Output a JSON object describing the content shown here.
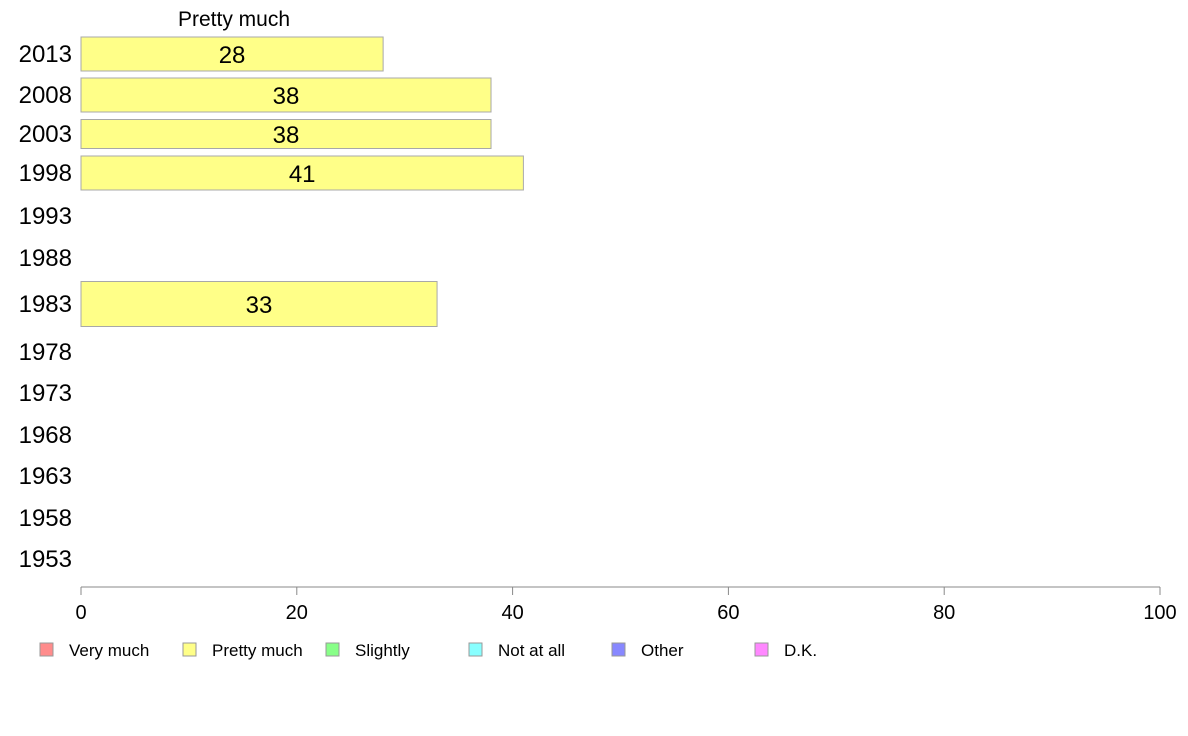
{
  "chart_data": {
    "type": "bar",
    "orientation": "horizontal",
    "panel_title": "Pretty much",
    "categories": [
      "2013",
      "2008",
      "2003",
      "1998",
      "1993",
      "1988",
      "1983",
      "1978",
      "1973",
      "1968",
      "1963",
      "1958",
      "1953"
    ],
    "series": [
      {
        "name": "Pretty much",
        "color": "#ffff88",
        "values": [
          28,
          38,
          38,
          41,
          null,
          null,
          33,
          null,
          null,
          null,
          null,
          null,
          null
        ]
      }
    ],
    "xlim": [
      0,
      100
    ],
    "xticks": [
      0,
      20,
      40,
      60,
      80,
      100
    ],
    "grid": false,
    "legend_position": "bottom",
    "legend": [
      {
        "label": "Very much",
        "color": "#ff8c8c"
      },
      {
        "label": "Pretty much",
        "color": "#ffff88"
      },
      {
        "label": "Slightly",
        "color": "#88ff88"
      },
      {
        "label": "Not at all",
        "color": "#88ffff"
      },
      {
        "label": "Other",
        "color": "#8888ff"
      },
      {
        "label": "D.K.",
        "color": "#ff88ff"
      }
    ]
  }
}
